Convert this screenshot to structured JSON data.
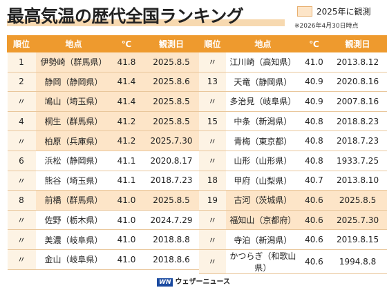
{
  "header": {
    "title": "最高気温の歴代全国ランキング",
    "legend": "2025年に観測",
    "note": "※2026年4月30日時点"
  },
  "tables": [
    {
      "columns": [
        "順位",
        "地点",
        "℃",
        "観測日"
      ],
      "rows": [
        {
          "cells": [
            "1",
            "伊勢崎（群馬県）",
            "41.8",
            "2025.8.5"
          ],
          "highlight": true
        },
        {
          "cells": [
            "2",
            "静岡（静岡県）",
            "41.4",
            "2025.8.6"
          ],
          "highlight": true
        },
        {
          "cells": [
            "〃",
            "鳩山（埼玉県）",
            "41.4",
            "2025.8.5"
          ],
          "highlight": true
        },
        {
          "cells": [
            "4",
            "桐生（群馬県）",
            "41.2",
            "2025.8.5"
          ],
          "highlight": true
        },
        {
          "cells": [
            "〃",
            "柏原（兵庫県）",
            "41.2",
            "2025.7.30"
          ],
          "highlight": true
        },
        {
          "cells": [
            "6",
            "浜松（静岡県）",
            "41.1",
            "2020.8.17"
          ],
          "highlight": false
        },
        {
          "cells": [
            "〃",
            "熊谷（埼玉県）",
            "41.1",
            "2018.7.23"
          ],
          "highlight": false
        },
        {
          "cells": [
            "8",
            "前橋（群馬県）",
            "41.0",
            "2025.8.5"
          ],
          "highlight": true
        },
        {
          "cells": [
            "〃",
            "佐野（栃木県）",
            "41.0",
            "2024.7.29"
          ],
          "highlight": false
        },
        {
          "cells": [
            "〃",
            "美濃（岐阜県）",
            "41.0",
            "2018.8.8"
          ],
          "highlight": false
        },
        {
          "cells": [
            "〃",
            "金山（岐阜県）",
            "41.0",
            "2018.8.6"
          ],
          "highlight": false
        }
      ]
    },
    {
      "columns": [
        "順位",
        "地点",
        "℃",
        "観測日"
      ],
      "rows": [
        {
          "cells": [
            "〃",
            "江川崎（高知県）",
            "41.0",
            "2013.8.12"
          ],
          "highlight": false
        },
        {
          "cells": [
            "13",
            "天竜（静岡県）",
            "40.9",
            "2020.8.16"
          ],
          "highlight": false
        },
        {
          "cells": [
            "〃",
            "多治見（岐阜県）",
            "40.9",
            "2007.8.16"
          ],
          "highlight": false
        },
        {
          "cells": [
            "15",
            "中条（新潟県）",
            "40.8",
            "2018.8.23"
          ],
          "highlight": false
        },
        {
          "cells": [
            "〃",
            "青梅（東京都）",
            "40.8",
            "2018.7.23"
          ],
          "highlight": false
        },
        {
          "cells": [
            "〃",
            "山形（山形県）",
            "40.8",
            "1933.7.25"
          ],
          "highlight": false
        },
        {
          "cells": [
            "18",
            "甲府（山梨県）",
            "40.7",
            "2013.8.10"
          ],
          "highlight": false
        },
        {
          "cells": [
            "19",
            "古河（茨城県）",
            "40.6",
            "2025.8.5"
          ],
          "highlight": true
        },
        {
          "cells": [
            "〃",
            "福知山（京都府）",
            "40.6",
            "2025.7.30"
          ],
          "highlight": true
        },
        {
          "cells": [
            "〃",
            "寺泊（新潟県）",
            "40.6",
            "2019.8.15"
          ],
          "highlight": false
        },
        {
          "cells": [
            "〃",
            "かつらぎ（和歌山県）",
            "40.6",
            "1994.8.8"
          ],
          "highlight": false
        }
      ]
    }
  ],
  "footer": {
    "logo": "WN",
    "brand": "ウェザーニュース"
  }
}
